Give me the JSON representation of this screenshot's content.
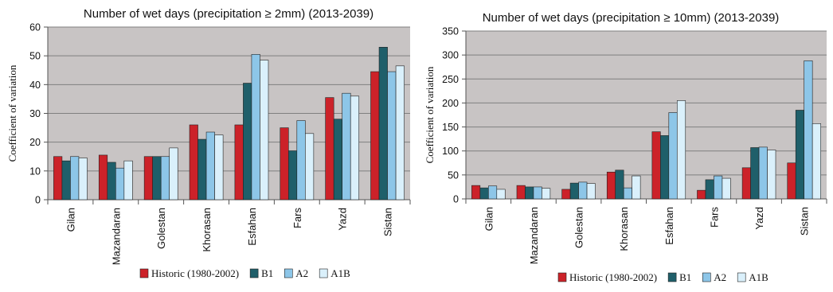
{
  "colors": {
    "plot_bg": "#c8c4c4",
    "grid": "#7f7f7f",
    "axis": "#555555",
    "bar_stroke": "#222222"
  },
  "chart_data": [
    {
      "type": "bar",
      "title": "Number of wet days (precipitation ≥ 2mm) (2013-2039)",
      "xlabel": "",
      "ylabel": "Coefficient of variation",
      "categories": [
        "Gilan",
        "Mazandaran",
        "Golestan",
        "Khorasan",
        "Esfahan",
        "Fars",
        "Yazd",
        "Sistan"
      ],
      "ylim": [
        0,
        60
      ],
      "yticks": [
        0,
        10,
        20,
        30,
        40,
        50,
        60
      ],
      "grid": true,
      "legend_position": "bottom",
      "series": [
        {
          "name": "Historic (1980-2002)",
          "color": "#cc2229",
          "values": [
            15,
            15.5,
            15,
            26,
            26,
            25,
            35.5,
            44.5
          ]
        },
        {
          "name": "B1",
          "color": "#1f5f6a",
          "values": [
            13.5,
            13,
            15,
            21,
            40.5,
            17,
            28,
            53
          ]
        },
        {
          "name": "A2",
          "color": "#8dc6e8",
          "values": [
            15,
            11,
            15,
            23.5,
            50.5,
            27.5,
            37,
            44.5
          ]
        },
        {
          "name": "A1B",
          "color": "#daf0fb",
          "values": [
            14.5,
            13.5,
            18,
            22.5,
            48.5,
            23,
            36,
            46.5
          ]
        }
      ]
    },
    {
      "type": "bar",
      "title": "Number of wet days (precipitation ≥ 10mm) (2013-2039)",
      "xlabel": "",
      "ylabel": "Coefficient of variation",
      "categories": [
        "Gilan",
        "Mazandaran",
        "Golestan",
        "Khorasan",
        "Esfahan",
        "Fars",
        "Yazd",
        "Sistan"
      ],
      "ylim": [
        0,
        350
      ],
      "yticks": [
        0,
        50,
        100,
        150,
        200,
        250,
        300,
        350
      ],
      "grid": true,
      "legend_position": "bottom",
      "series": [
        {
          "name": "Historic (1980-2002)",
          "color": "#cc2229",
          "values": [
            28,
            28,
            20,
            56,
            140,
            18,
            65,
            75
          ]
        },
        {
          "name": "B1",
          "color": "#1f5f6a",
          "values": [
            23,
            25,
            33,
            60,
            132,
            40,
            107,
            185
          ]
        },
        {
          "name": "A2",
          "color": "#8dc6e8",
          "values": [
            27,
            25,
            35,
            23,
            180,
            48,
            108,
            288
          ]
        },
        {
          "name": "A1B",
          "color": "#daf0fb",
          "values": [
            20,
            22,
            32,
            48,
            205,
            43,
            102,
            157
          ]
        }
      ]
    }
  ]
}
